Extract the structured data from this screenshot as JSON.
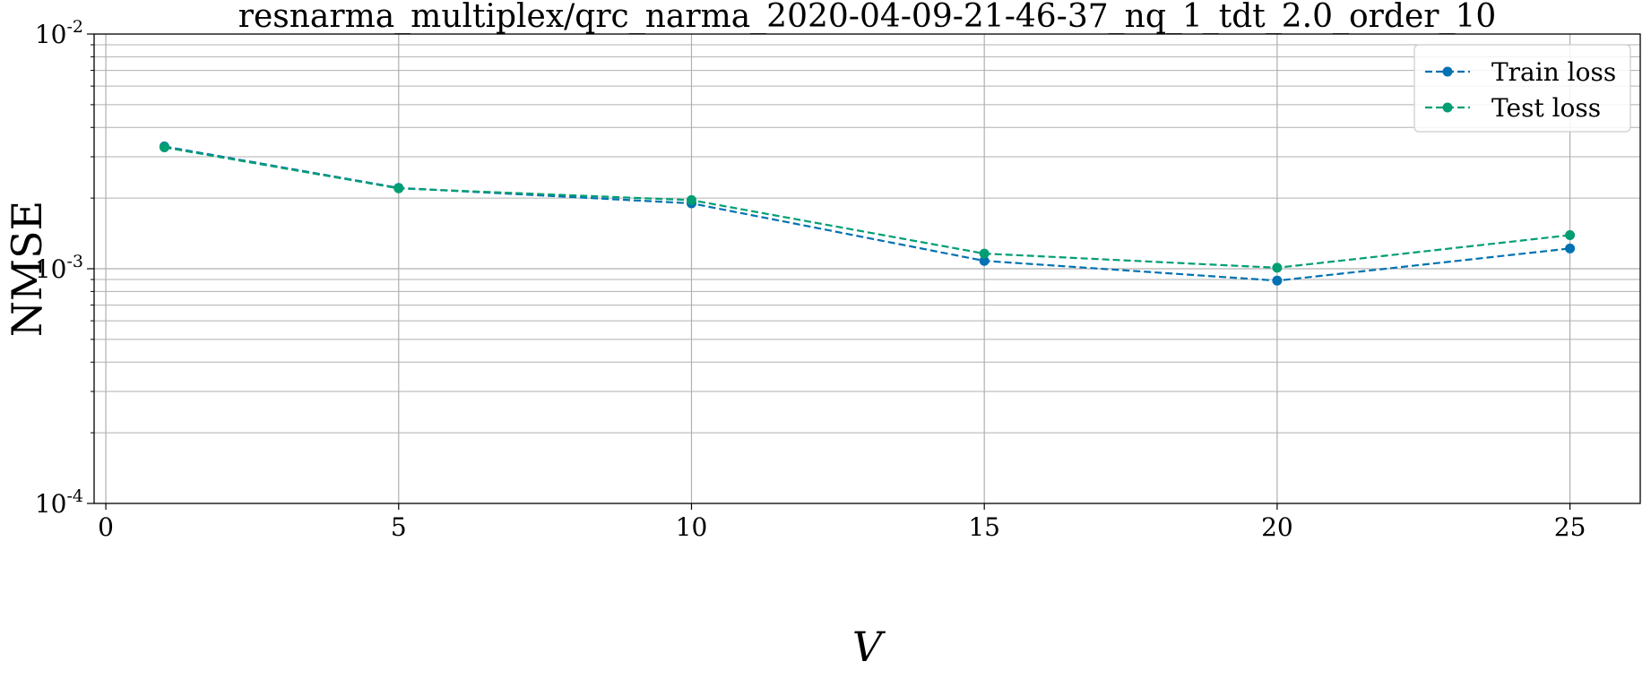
{
  "chart_data": {
    "type": "line",
    "title": "resnarma_multiplex/qrc_narma_2020-04-09-21-46-37_nq_1_tdt_2.0_order_10",
    "xlabel": "V",
    "ylabel": "NMSE",
    "x": [
      1,
      5,
      10,
      15,
      20,
      25
    ],
    "series": [
      {
        "name": "Train loss",
        "color": "#0072b2",
        "values": [
          0.00332,
          0.00221,
          0.0019,
          0.00108,
          0.00089,
          0.00122
        ]
      },
      {
        "name": "Test loss",
        "color": "#009e73",
        "values": [
          0.00329,
          0.0022,
          0.00196,
          0.00116,
          0.00101,
          0.00139
        ]
      }
    ],
    "xlim": [
      -0.2,
      26.2
    ],
    "ylim": [
      0.0001,
      0.01
    ],
    "yscale": "log",
    "xticks": [
      0,
      5,
      10,
      15,
      20,
      25
    ],
    "yticks": [
      {
        "value": 0.0001,
        "base": "10",
        "exp": "-4"
      },
      {
        "value": 0.001,
        "base": "10",
        "exp": "-3"
      },
      {
        "value": 0.01,
        "base": "10",
        "exp": "-2"
      }
    ],
    "grid": true,
    "legend_position": "top-right"
  }
}
